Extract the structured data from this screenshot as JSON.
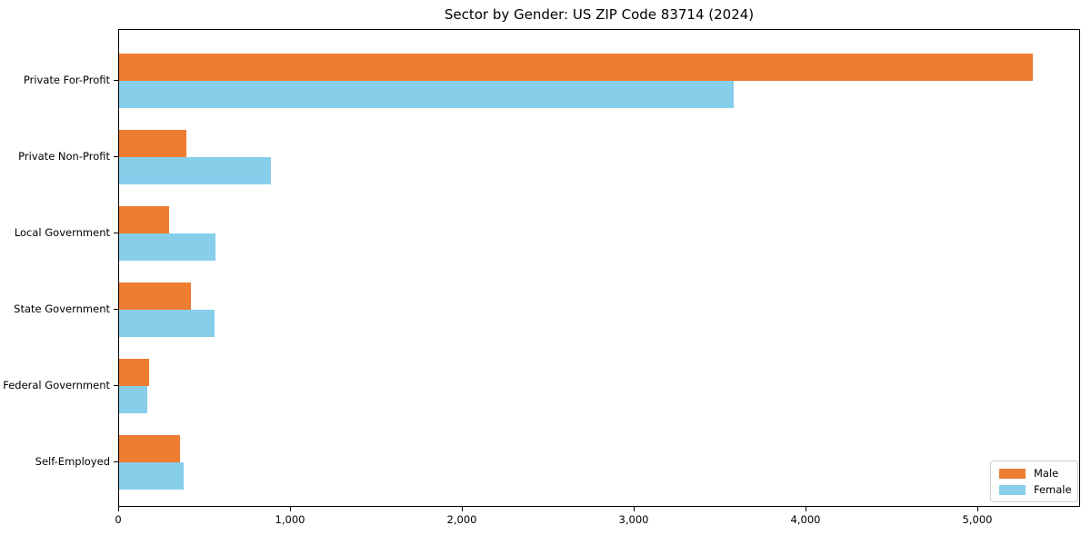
{
  "chart_data": {
    "type": "bar",
    "orientation": "horizontal",
    "title": "Sector by Gender: US ZIP Code 83714 (2024)",
    "categories": [
      "Private For-Profit",
      "Private Non-Profit",
      "Local Government",
      "State Government",
      "Federal Government",
      "Self-Employed"
    ],
    "series": [
      {
        "name": "Male",
        "color": "#ED7D31",
        "values": [
          5320,
          390,
          290,
          420,
          175,
          355
        ]
      },
      {
        "name": "Female",
        "color": "#87CEEB",
        "values": [
          3580,
          885,
          560,
          555,
          165,
          375
        ]
      }
    ],
    "xlabel": "",
    "ylabel": "",
    "xlim": [
      0,
      5600
    ],
    "xticks": {
      "values": [
        0,
        1000,
        2000,
        3000,
        4000,
        5000
      ],
      "labels": [
        "0",
        "1,000",
        "2,000",
        "3,000",
        "4,000",
        "5,000"
      ]
    },
    "grid": false,
    "legend": {
      "position": "lower right"
    }
  }
}
